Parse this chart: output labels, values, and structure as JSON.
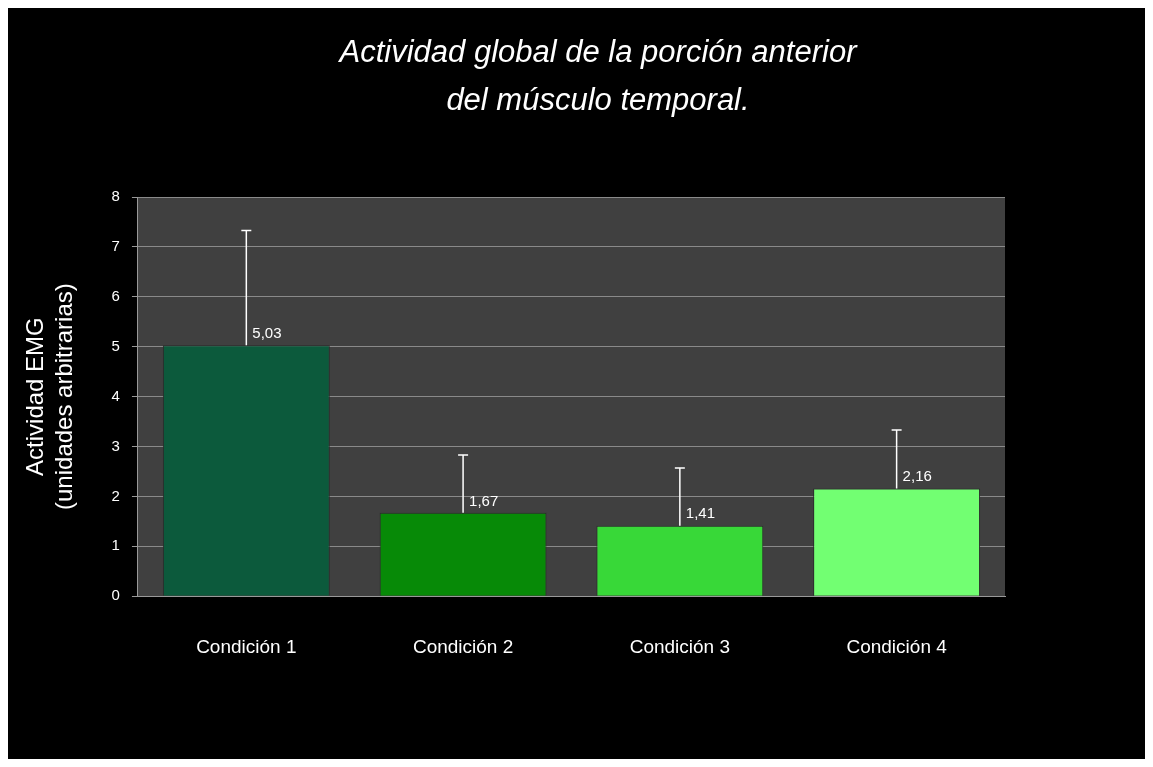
{
  "chart_data": {
    "type": "bar",
    "title": "Actividad global de la porción anterior del músculo temporal.",
    "ylabel": "Actividad EMG (unidades arbitrarias)",
    "categories": [
      "Condición 1",
      "Condición 2",
      "Condición 3",
      "Condición 4"
    ],
    "values": [
      5.03,
      1.67,
      1.41,
      2.16
    ],
    "colors": [
      "#0c5a3c",
      "#078a07",
      "#38d838",
      "#72ff72"
    ],
    "errors": [
      [
        5.03,
        7.33
      ],
      [
        1.67,
        2.83
      ],
      [
        1.41,
        2.57
      ],
      [
        2.16,
        3.33
      ]
    ],
    "value_labels": [
      "5,03",
      "1,67",
      "1,41",
      "2,16"
    ],
    "ylim": [
      0,
      8
    ],
    "yticks": [
      0,
      1,
      2,
      3,
      4,
      5,
      6,
      7,
      8
    ],
    "grid": "y"
  }
}
